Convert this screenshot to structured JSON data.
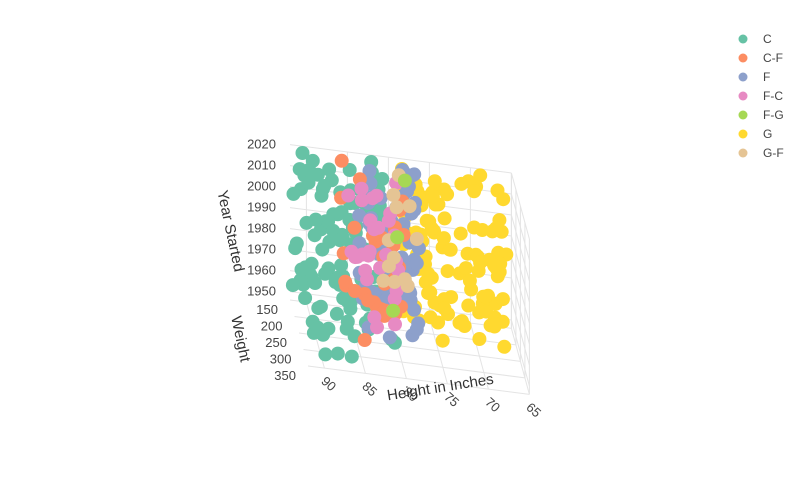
{
  "chart_data": {
    "type": "scatter",
    "dimensions": "3d",
    "xlabel": "Height in Inches",
    "ylabel": "Weight",
    "zlabel": "Year Started",
    "x_ticks": [
      90,
      85,
      80,
      75,
      70,
      65
    ],
    "y_ticks": [
      150,
      200,
      250,
      300,
      350
    ],
    "z_ticks": [
      1950,
      1960,
      1970,
      1980,
      1990,
      2000,
      2010,
      2020
    ],
    "xlim": [
      65,
      92
    ],
    "ylim": [
      150,
      350
    ],
    "zlim": [
      1946,
      2020
    ],
    "legend_position": "top-right",
    "series": [
      {
        "name": "C",
        "color": "#66c2a5",
        "height_range": [
          80,
          92
        ],
        "weight_range": [
          150,
          350
        ],
        "year_range": [
          1946,
          2019
        ]
      },
      {
        "name": "C-F",
        "color": "#fc8d62",
        "height_range": [
          79,
          86
        ],
        "weight_range": [
          150,
          280
        ],
        "year_range": [
          1947,
          2019
        ]
      },
      {
        "name": "F",
        "color": "#8da0cb",
        "height_range": [
          77,
          84
        ],
        "weight_range": [
          150,
          270
        ],
        "year_range": [
          1947,
          2019
        ]
      },
      {
        "name": "F-C",
        "color": "#e78ac3",
        "height_range": [
          79,
          85
        ],
        "weight_range": [
          150,
          280
        ],
        "year_range": [
          1947,
          2019
        ]
      },
      {
        "name": "F-G",
        "color": "#a6d854",
        "height_range": [
          77,
          81
        ],
        "weight_range": [
          170,
          230
        ],
        "year_range": [
          1947,
          2019
        ]
      },
      {
        "name": "G",
        "color": "#ffd92f",
        "height_range": [
          66,
          79
        ],
        "weight_range": [
          150,
          240
        ],
        "year_range": [
          1946,
          2019
        ]
      },
      {
        "name": "G-F",
        "color": "#e5c494",
        "height_range": [
          76,
          81
        ],
        "weight_range": [
          150,
          230
        ],
        "year_range": [
          1947,
          2019
        ]
      }
    ]
  }
}
